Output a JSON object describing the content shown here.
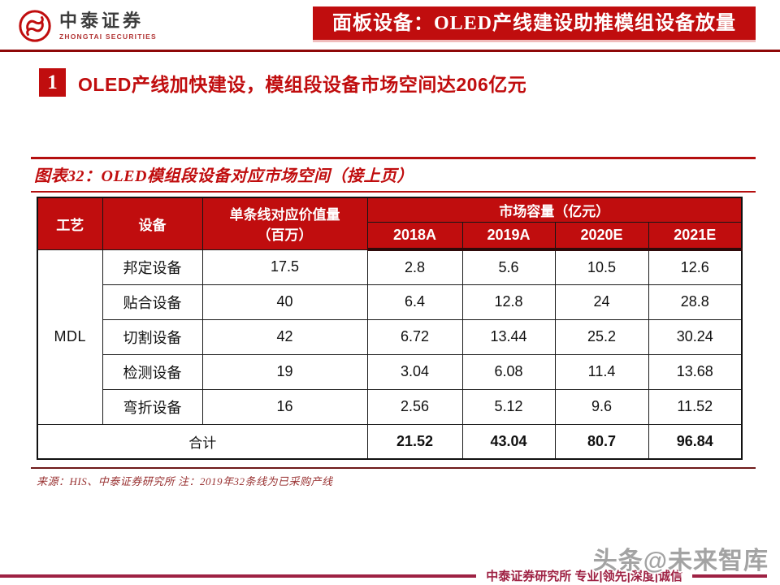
{
  "header": {
    "logo": {
      "cn": "中泰证券",
      "en": "ZHONGTAI SECURITIES"
    },
    "banner": "面板设备：OLED产线建设助推模组设备放量"
  },
  "section": {
    "number": "1",
    "title": "OLED产线加快建设，模组段设备市场空间达206亿元"
  },
  "figure": {
    "title": "图表32：OLED模组段设备对应市场空间（接上页）",
    "source_note": "来源：HIS、中泰证券研究所 注：2019年32条线为已采购产线"
  },
  "table_header": {
    "col_process": "工艺",
    "col_device": "设备",
    "col_value_line1": "单条线对应价值量",
    "col_value_line2": "（百万）",
    "group": "市场容量（亿元）",
    "years": [
      "2018A",
      "2019A",
      "2020E",
      "2021E"
    ]
  },
  "chart_data": {
    "type": "table",
    "title": "图表32：OLED模组段设备对应市场空间（接上页）",
    "columns": [
      "工艺",
      "设备",
      "单条线对应价值量（百万）",
      "2018A",
      "2019A",
      "2020E",
      "2021E"
    ],
    "group_header": "市场容量（亿元）",
    "process": "MDL",
    "rows": [
      [
        "邦定设备",
        "17.5",
        "2.8",
        "5.6",
        "10.5",
        "12.6"
      ],
      [
        "贴合设备",
        "40",
        "6.4",
        "12.8",
        "24",
        "28.8"
      ],
      [
        "切割设备",
        "42",
        "6.72",
        "13.44",
        "25.2",
        "30.24"
      ],
      [
        "检测设备",
        "19",
        "3.04",
        "6.08",
        "11.4",
        "13.68"
      ],
      [
        "弯折设备",
        "16",
        "2.56",
        "5.12",
        "9.6",
        "11.52"
      ]
    ],
    "total_row": [
      "合计",
      "21.52",
      "43.04",
      "80.7",
      "96.84"
    ]
  },
  "footer": {
    "text": "中泰证券研究所 专业|领先|深度|诚信",
    "watermark": "头条@未来智库"
  },
  "colors": {
    "brand_red": "#c00d0e",
    "footer_maroon": "#9e2143",
    "rule_dark_red": "#8e0808",
    "watermark_gray": "#a3a3a3"
  }
}
